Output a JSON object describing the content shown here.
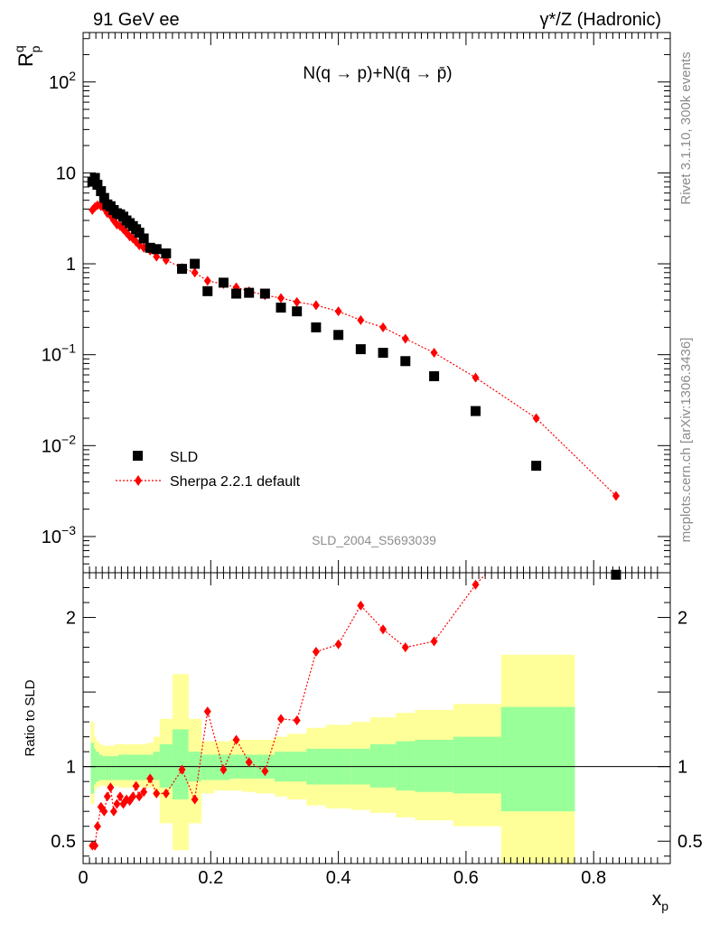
{
  "header": {
    "left_label": "91 GeV ee",
    "right_label": "γ*/Z (Hadronic)"
  },
  "side_labels": {
    "rivet": "Rivet 3.1.10,  300k events",
    "source": "mcplots.cern.ch [arXiv:1306.3436]"
  },
  "analysis_id": "SLD_2004_S5693039",
  "colors": {
    "data": "#000000",
    "mc": "#ff0000",
    "band_inner": "#99ff99",
    "band_outer": "#ffff99"
  },
  "chart_data": [
    {
      "type": "scatter",
      "panel": "main",
      "title": "N(q → p)+N(q̄ → p̄)",
      "xlabel": "x_p",
      "ylabel": "R^q_p",
      "xlim": [
        0,
        0.92
      ],
      "ylim": [
        0.0004,
        350
      ],
      "yscale": "log",
      "y_ticks": [
        "10^-3",
        "10^-2",
        "10^-1",
        "1",
        "10",
        "10^2"
      ],
      "legend": {
        "placement": "lower-left",
        "entries": [
          "SLD",
          "Sherpa 2.2.1 default"
        ]
      },
      "series": [
        {
          "name": "SLD",
          "style": "black-squares",
          "x": [
            0.0145,
            0.0185,
            0.0225,
            0.028,
            0.033,
            0.038,
            0.043,
            0.048,
            0.053,
            0.058,
            0.063,
            0.068,
            0.073,
            0.078,
            0.083,
            0.088,
            0.095,
            0.105,
            0.115,
            0.13,
            0.155,
            0.175,
            0.195,
            0.22,
            0.24,
            0.26,
            0.285,
            0.31,
            0.335,
            0.365,
            0.4,
            0.435,
            0.47,
            0.505,
            0.55,
            0.615,
            0.71,
            0.835
          ],
          "y": [
            8.0,
            8.8,
            7.4,
            6.3,
            5.3,
            4.5,
            4.3,
            3.9,
            3.6,
            3.5,
            3.3,
            3.0,
            2.8,
            2.6,
            2.4,
            2.2,
            1.9,
            1.5,
            1.45,
            1.3,
            0.88,
            1.0,
            0.5,
            0.62,
            0.47,
            0.48,
            0.47,
            0.33,
            0.3,
            0.2,
            0.165,
            0.115,
            0.105,
            0.085,
            0.058,
            0.024,
            0.006,
            0.00038
          ]
        },
        {
          "name": "Sherpa 2.2.1 default",
          "style": "red-diamonds-dotted",
          "x": [
            0.0145,
            0.0185,
            0.0225,
            0.028,
            0.033,
            0.038,
            0.043,
            0.048,
            0.053,
            0.058,
            0.063,
            0.068,
            0.073,
            0.078,
            0.083,
            0.088,
            0.095,
            0.105,
            0.115,
            0.13,
            0.155,
            0.175,
            0.195,
            0.22,
            0.24,
            0.26,
            0.285,
            0.31,
            0.335,
            0.365,
            0.4,
            0.435,
            0.47,
            0.505,
            0.55,
            0.615,
            0.71,
            0.835
          ],
          "y": [
            3.9,
            4.2,
            4.4,
            4.3,
            4.1,
            3.6,
            3.4,
            3.0,
            2.7,
            2.6,
            2.4,
            2.2,
            2.0,
            1.9,
            1.75,
            1.6,
            1.5,
            1.4,
            1.2,
            1.1,
            0.9,
            0.8,
            0.65,
            0.6,
            0.55,
            0.5,
            0.45,
            0.42,
            0.38,
            0.35,
            0.3,
            0.24,
            0.2,
            0.15,
            0.105,
            0.056,
            0.02,
            0.0028
          ]
        }
      ]
    },
    {
      "type": "line",
      "panel": "ratio",
      "xlabel": "x_p",
      "ylabel": "Ratio to SLD",
      "xlim": [
        0,
        0.92
      ],
      "ylim": [
        0.35,
        2.3
      ],
      "reference_line": 1,
      "x_ticks": [
        "0",
        "0.2",
        "0.4",
        "0.6",
        "0.8"
      ],
      "y_ticks": [
        "0.5",
        "1",
        "2"
      ],
      "bands": {
        "edges": [
          0.012,
          0.017,
          0.02,
          0.025,
          0.03,
          0.035,
          0.04,
          0.045,
          0.05,
          0.055,
          0.06,
          0.065,
          0.07,
          0.075,
          0.08,
          0.085,
          0.09,
          0.1,
          0.11,
          0.12,
          0.14,
          0.165,
          0.185,
          0.205,
          0.23,
          0.25,
          0.27,
          0.3,
          0.32,
          0.35,
          0.38,
          0.42,
          0.45,
          0.49,
          0.52,
          0.58,
          0.655,
          0.77
        ],
        "inner_lo": [
          0.82,
          0.88,
          0.9,
          0.91,
          0.91,
          0.91,
          0.91,
          0.91,
          0.91,
          0.91,
          0.91,
          0.91,
          0.91,
          0.91,
          0.91,
          0.91,
          0.91,
          0.91,
          0.91,
          0.86,
          0.78,
          0.9,
          0.91,
          0.91,
          0.92,
          0.92,
          0.92,
          0.9,
          0.9,
          0.88,
          0.88,
          0.88,
          0.86,
          0.84,
          0.83,
          0.82,
          0.7
        ],
        "inner_hi": [
          1.16,
          1.12,
          1.1,
          1.08,
          1.07,
          1.07,
          1.07,
          1.07,
          1.07,
          1.08,
          1.08,
          1.08,
          1.08,
          1.08,
          1.08,
          1.08,
          1.08,
          1.08,
          1.1,
          1.15,
          1.25,
          1.1,
          1.08,
          1.08,
          1.08,
          1.08,
          1.08,
          1.1,
          1.1,
          1.12,
          1.12,
          1.12,
          1.15,
          1.17,
          1.18,
          1.2,
          1.4
        ],
        "outer_lo": [
          0.75,
          0.84,
          0.86,
          0.87,
          0.87,
          0.87,
          0.87,
          0.87,
          0.87,
          0.86,
          0.86,
          0.86,
          0.86,
          0.86,
          0.86,
          0.86,
          0.86,
          0.86,
          0.8,
          0.62,
          0.44,
          0.62,
          0.82,
          0.84,
          0.84,
          0.83,
          0.82,
          0.8,
          0.78,
          0.74,
          0.72,
          0.71,
          0.69,
          0.66,
          0.64,
          0.6,
          0.32
        ],
        "outer_hi": [
          1.3,
          1.2,
          1.17,
          1.15,
          1.14,
          1.14,
          1.14,
          1.14,
          1.15,
          1.15,
          1.15,
          1.15,
          1.15,
          1.15,
          1.15,
          1.15,
          1.15,
          1.16,
          1.2,
          1.32,
          1.62,
          1.32,
          1.17,
          1.17,
          1.18,
          1.18,
          1.18,
          1.2,
          1.22,
          1.26,
          1.28,
          1.3,
          1.33,
          1.36,
          1.38,
          1.42,
          1.75
        ]
      },
      "series": [
        {
          "name": "Sherpa 2.2.1 default",
          "x": [
            0.0145,
            0.0185,
            0.0225,
            0.028,
            0.033,
            0.038,
            0.043,
            0.048,
            0.053,
            0.058,
            0.063,
            0.068,
            0.073,
            0.078,
            0.083,
            0.088,
            0.095,
            0.105,
            0.115,
            0.13,
            0.155,
            0.175,
            0.195,
            0.22,
            0.24,
            0.26,
            0.285,
            0.31,
            0.335,
            0.365,
            0.4,
            0.435,
            0.47,
            0.505,
            0.55,
            0.615
          ],
          "y": [
            0.47,
            0.47,
            0.6,
            0.73,
            0.7,
            0.8,
            0.86,
            0.7,
            0.75,
            0.8,
            0.75,
            0.78,
            0.77,
            0.8,
            0.87,
            0.8,
            0.83,
            0.92,
            0.82,
            0.82,
            0.98,
            0.78,
            1.37,
            0.98,
            1.18,
            1.03,
            0.97,
            1.32,
            1.31,
            1.77,
            1.82,
            2.08,
            1.92,
            1.8,
            1.84,
            2.22
          ]
        }
      ]
    }
  ]
}
